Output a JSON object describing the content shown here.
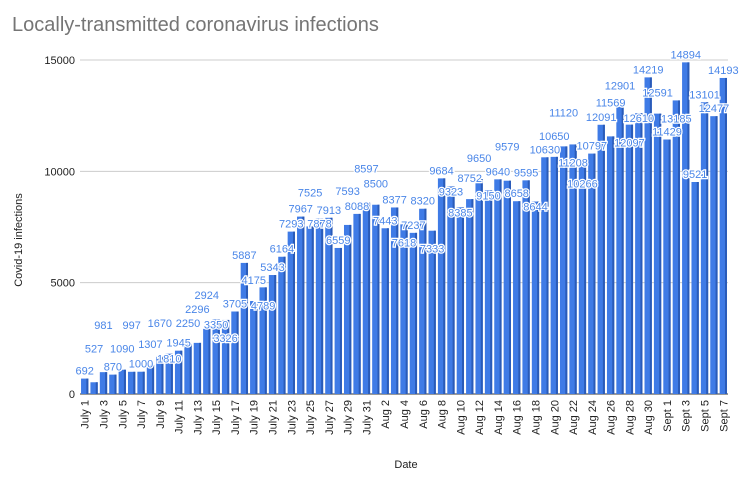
{
  "chart_data": {
    "type": "bar",
    "title": "Locally-transmitted coronavirus infections",
    "xlabel": "Date",
    "ylabel": "Covid-19 infections",
    "ylim": [
      0,
      15000
    ],
    "yticks": [
      0,
      5000,
      10000,
      15000
    ],
    "grid": true,
    "bar_color": "#3f7be6",
    "label_color": "#4a86e8",
    "categories": [
      "July 1",
      "July 2",
      "July 3",
      "July 4",
      "July 5",
      "July 6",
      "July 7",
      "July 8",
      "July 9",
      "July 10",
      "July 11",
      "July 12",
      "July 13",
      "July 14",
      "July 15",
      "July 16",
      "July 17",
      "July 18",
      "July 19",
      "July 20",
      "July 21",
      "July 22",
      "July 23",
      "July 24",
      "July 25",
      "July 26",
      "July 27",
      "July 28",
      "July 29",
      "July 30",
      "July 31",
      "Aug 1",
      "Aug 2",
      "Aug 3",
      "Aug 4",
      "Aug 5",
      "Aug 6",
      "Aug 7",
      "Aug 8",
      "Aug 9",
      "Aug 10",
      "Aug 11",
      "Aug 12",
      "Aug 13",
      "Aug 14",
      "Aug 15",
      "Aug 16",
      "Aug 17",
      "Aug 18",
      "Aug 19",
      "Aug 20",
      "Aug 21",
      "Aug 22",
      "Aug 23",
      "Aug 24",
      "Aug 25",
      "Aug 26",
      "Aug 27",
      "Aug 28",
      "Aug 29",
      "Aug 30",
      "Aug 31",
      "Sept 1",
      "Sept 2",
      "Sept 3",
      "Sept 4",
      "Sept 5",
      "Sept 6",
      "Sept 7"
    ],
    "values": [
      692,
      527,
      981,
      870,
      1090,
      997,
      1000,
      1307,
      1670,
      1810,
      1945,
      2250,
      2296,
      2924,
      3350,
      3326,
      3705,
      5887,
      4175,
      4789,
      5343,
      6164,
      7293,
      7967,
      7525,
      7878,
      7913,
      6559,
      7593,
      8088,
      8597,
      8500,
      7443,
      8377,
      7618,
      7237,
      8320,
      7333,
      9684,
      9323,
      8385,
      8752,
      9650,
      9150,
      9640,
      9579,
      8658,
      9595,
      8644,
      10630,
      10650,
      11120,
      11208,
      10266,
      10797,
      12091,
      11569,
      12901,
      12097,
      12610,
      14219,
      12591,
      11429,
      13185,
      14894,
      9521,
      13101,
      12477,
      14193
    ]
  }
}
